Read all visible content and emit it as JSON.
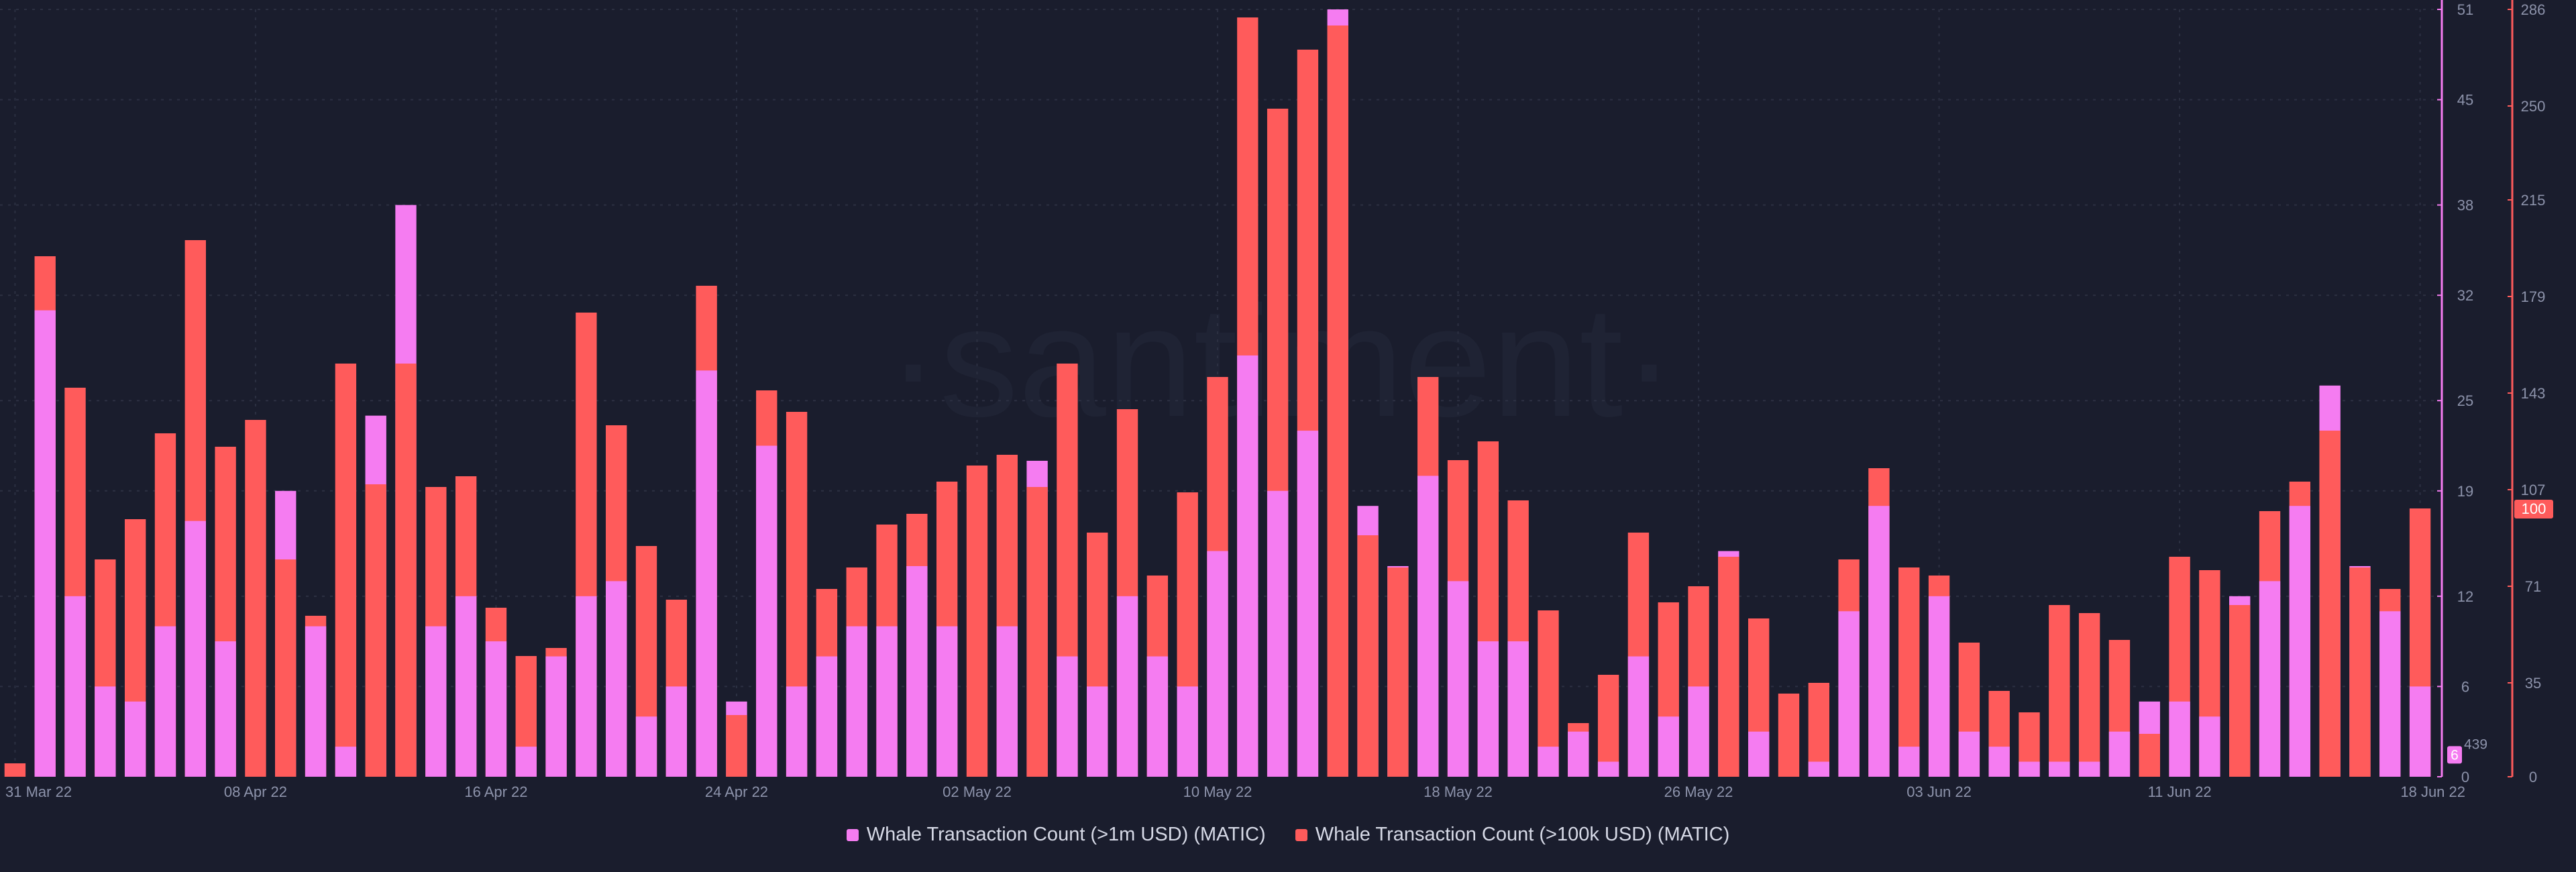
{
  "watermark": "·santiment·",
  "legend": {
    "series1": "Whale Transaction Count (>1m USD) (MATIC)",
    "series2": "Whale Transaction Count (>100k USD) (MATIC)"
  },
  "colors": {
    "background": "#1a1d2d",
    "series1": "#f57cf1",
    "series2": "#ff5b5b",
    "axis_text": "#8d93ab",
    "grid": "#2c3042"
  },
  "tooltip_values": {
    "left_axis_hover": "6",
    "left_axis_hover_partial": "439",
    "right_axis_current": "100"
  },
  "chart_data": {
    "type": "bar",
    "title": "",
    "x_ticks": [
      "31 Mar 22",
      "08 Apr 22",
      "16 Apr 22",
      "24 Apr 22",
      "02 May 22",
      "10 May 22",
      "18 May 22",
      "26 May 22",
      "03 Jun 22",
      "11 Jun 22",
      "18 Jun 22"
    ],
    "x_tick_indices": [
      0,
      8,
      16,
      24,
      32,
      40,
      48,
      56,
      64,
      72,
      80
    ],
    "left_axis": {
      "ticks": [
        0,
        6,
        12,
        19,
        25,
        32,
        38,
        45,
        51
      ],
      "ylim": [
        0,
        51
      ]
    },
    "right_axis": {
      "ticks": [
        0,
        35,
        71,
        107,
        143,
        179,
        215,
        250,
        286
      ],
      "ylim": [
        0,
        286
      ]
    },
    "series": [
      {
        "name": "Whale Transaction Count (>1m USD) (MATIC)",
        "axis": "left",
        "values": [
          0,
          31,
          12,
          6,
          5,
          10,
          17,
          9,
          0,
          19,
          10,
          2,
          24,
          38,
          10,
          12,
          9,
          2,
          8,
          12,
          13,
          4,
          6,
          27,
          5,
          22,
          6,
          8,
          10,
          10,
          14,
          10,
          0,
          10,
          21,
          8,
          6,
          12,
          8,
          6,
          15,
          28,
          19,
          23,
          52,
          18,
          14,
          20,
          13,
          9,
          9,
          2,
          3,
          1,
          8,
          4,
          6,
          15,
          3,
          0,
          1,
          11,
          18,
          2,
          12,
          3,
          2,
          1,
          1,
          1,
          3,
          5,
          5,
          4,
          12,
          13,
          18,
          26,
          14,
          11,
          6
        ]
      },
      {
        "name": "Whale Transaction Count (>100k USD) (MATIC)",
        "axis": "right",
        "values": [
          5,
          194,
          145,
          81,
          96,
          128,
          200,
          123,
          133,
          81,
          60,
          154,
          109,
          154,
          108,
          112,
          63,
          45,
          48,
          173,
          131,
          86,
          66,
          183,
          23,
          144,
          136,
          70,
          78,
          94,
          98,
          110,
          116,
          120,
          108,
          154,
          91,
          137,
          75,
          106,
          149,
          283,
          249,
          271,
          280,
          90,
          78,
          149,
          118,
          125,
          103,
          62,
          20,
          38,
          91,
          65,
          71,
          82,
          59,
          31,
          35,
          81,
          115,
          78,
          75,
          50,
          32,
          24,
          64,
          61,
          51,
          16,
          82,
          77,
          64,
          99,
          110,
          129,
          78,
          70,
          100
        ]
      }
    ]
  }
}
